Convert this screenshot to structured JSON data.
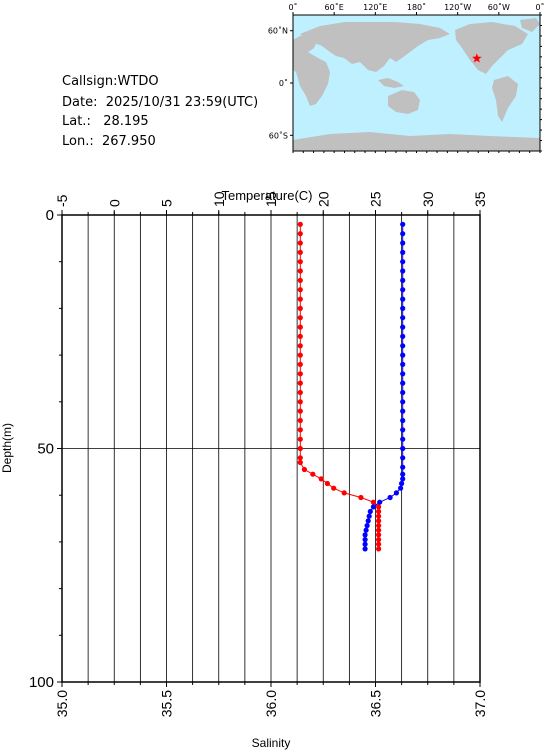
{
  "station": {
    "callsign_line": "Callsign:WTDO",
    "date_line": "Date:  2025/10/31 23:59(UTC)",
    "lat_line": "Lat.:   28.195",
    "lon_line": "Lon.:  267.950"
  },
  "map": {
    "top_ticks": [
      "0˚",
      "60˚E",
      "120˚E",
      "180˚",
      "120˚W",
      "60˚W",
      "0˚"
    ],
    "left_ticks": [
      "60˚N",
      "0˚",
      "60˚S"
    ],
    "ocean_color": "#bff0ff",
    "land_color": "#c0c0c0",
    "marker_color": "#ff0000",
    "marker_icon": "star-icon",
    "marker_lat": 28.195,
    "marker_lon": 267.95
  },
  "chart_data": {
    "type": "scatter",
    "xlabel_top": "Temperature(C)",
    "xlabel_bottom": "Salinity",
    "ylabel": "Depth(m)",
    "temp_ticks": [
      "-5",
      "0",
      "5",
      "10",
      "15",
      "20",
      "25",
      "30",
      "35"
    ],
    "sal_ticks": [
      "35.0",
      "35.5",
      "36.0",
      "36.5",
      "37.0"
    ],
    "depth_ticks": [
      "0",
      "50",
      "100"
    ],
    "temperature_lim": [
      -5,
      35
    ],
    "salinity_lim": [
      35.0,
      37.0
    ],
    "depth_lim": [
      0,
      100
    ],
    "grid": true,
    "series": [
      {
        "name": "Temperature",
        "axis": "temperature",
        "color": "#ff0000",
        "points": [
          [
            17.8,
            2
          ],
          [
            17.8,
            4
          ],
          [
            17.8,
            6
          ],
          [
            17.8,
            8
          ],
          [
            17.8,
            10
          ],
          [
            17.8,
            12
          ],
          [
            17.8,
            14
          ],
          [
            17.8,
            16
          ],
          [
            17.8,
            18
          ],
          [
            17.8,
            20
          ],
          [
            17.8,
            22
          ],
          [
            17.8,
            24
          ],
          [
            17.8,
            26
          ],
          [
            17.8,
            28
          ],
          [
            17.8,
            30
          ],
          [
            17.8,
            32
          ],
          [
            17.8,
            34
          ],
          [
            17.8,
            36
          ],
          [
            17.8,
            38
          ],
          [
            17.8,
            40
          ],
          [
            17.8,
            42
          ],
          [
            17.8,
            44
          ],
          [
            17.8,
            46
          ],
          [
            17.8,
            48
          ],
          [
            17.8,
            50
          ],
          [
            17.8,
            52
          ],
          [
            17.8,
            53
          ],
          [
            18.2,
            54.5
          ],
          [
            19.0,
            55.5
          ],
          [
            19.8,
            56.5
          ],
          [
            20.4,
            57.5
          ],
          [
            21.0,
            58.5
          ],
          [
            22.0,
            59.5
          ],
          [
            23.6,
            60.5
          ],
          [
            24.8,
            61.5
          ],
          [
            25.3,
            62.5
          ],
          [
            25.3,
            63.5
          ],
          [
            25.3,
            64.5
          ],
          [
            25.3,
            65.5
          ],
          [
            25.3,
            66.5
          ],
          [
            25.3,
            67.5
          ],
          [
            25.3,
            68.5
          ],
          [
            25.3,
            69.5
          ],
          [
            25.3,
            70.5
          ],
          [
            25.3,
            71.5
          ]
        ]
      },
      {
        "name": "Salinity",
        "axis": "salinity",
        "color": "#0000ff",
        "points": [
          [
            36.63,
            2
          ],
          [
            36.63,
            4
          ],
          [
            36.63,
            6
          ],
          [
            36.63,
            8
          ],
          [
            36.63,
            10
          ],
          [
            36.63,
            12
          ],
          [
            36.63,
            14
          ],
          [
            36.63,
            16
          ],
          [
            36.63,
            18
          ],
          [
            36.63,
            20
          ],
          [
            36.63,
            22
          ],
          [
            36.63,
            24
          ],
          [
            36.63,
            26
          ],
          [
            36.63,
            28
          ],
          [
            36.63,
            30
          ],
          [
            36.63,
            32
          ],
          [
            36.63,
            34
          ],
          [
            36.63,
            36
          ],
          [
            36.63,
            38
          ],
          [
            36.63,
            40
          ],
          [
            36.63,
            42
          ],
          [
            36.63,
            44
          ],
          [
            36.63,
            46
          ],
          [
            36.63,
            48
          ],
          [
            36.63,
            50
          ],
          [
            36.63,
            52
          ],
          [
            36.63,
            54
          ],
          [
            36.63,
            55.5
          ],
          [
            36.63,
            56.5
          ],
          [
            36.625,
            57.5
          ],
          [
            36.62,
            58.5
          ],
          [
            36.6,
            59.5
          ],
          [
            36.57,
            60.5
          ],
          [
            36.52,
            61.5
          ],
          [
            36.49,
            62.5
          ],
          [
            36.475,
            63.5
          ],
          [
            36.47,
            64.5
          ],
          [
            36.465,
            65.5
          ],
          [
            36.46,
            66.5
          ],
          [
            36.455,
            67.5
          ],
          [
            36.45,
            68.5
          ],
          [
            36.45,
            69.5
          ],
          [
            36.45,
            70.5
          ],
          [
            36.45,
            71.5
          ]
        ]
      }
    ]
  }
}
